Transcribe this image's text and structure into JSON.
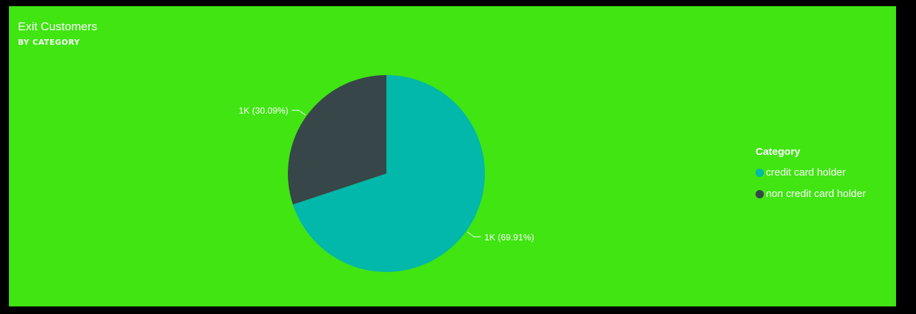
{
  "visual": {
    "title": "Exit Customers",
    "subtitle": "BY CATEGORY"
  },
  "chart_data": {
    "type": "pie",
    "categories": [
      "credit card holder",
      "non credit card holder"
    ],
    "values": [
      69.91,
      30.09
    ],
    "data_labels": [
      "1K (69.91%)",
      "1K (30.09%)"
    ],
    "colors": [
      "#01B8AA",
      "#374649"
    ],
    "legend_title": "Category",
    "legend_position": "right"
  },
  "legend": {
    "title": "Category",
    "items": [
      {
        "label": "credit card holder",
        "color": "#01B8AA"
      },
      {
        "label": "non credit card holder",
        "color": "#374649"
      }
    ]
  },
  "colors": {
    "background": "#40E512",
    "frame": "#000000",
    "text": "#FFFFFF"
  }
}
